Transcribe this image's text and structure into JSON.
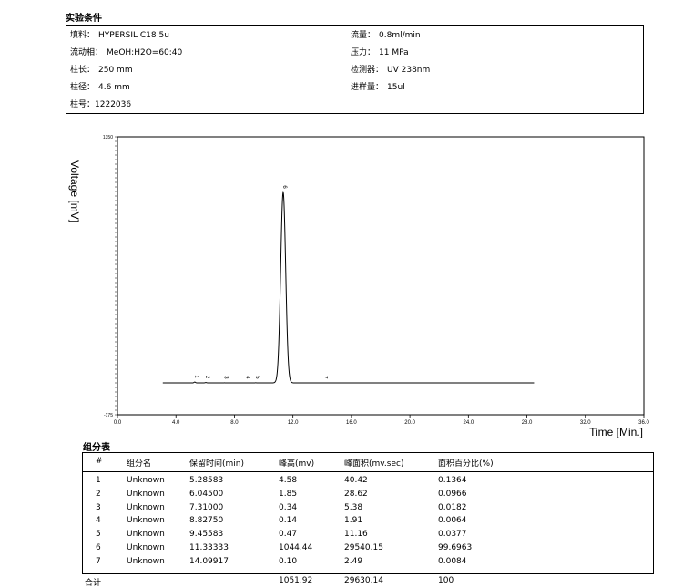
{
  "conditions": {
    "title": "实验条件",
    "left": [
      {
        "label": "填料：",
        "value": "HYPERSIL C18 5u"
      },
      {
        "label": "流动相：",
        "value": "MeOH:H2O=60:40"
      },
      {
        "label": "柱长：",
        "value": "250 mm"
      },
      {
        "label": "柱径：",
        "value": "4.6 mm"
      },
      {
        "label": "柱号：",
        "value": "1222036"
      }
    ],
    "right": [
      {
        "label": "流量：",
        "value": "0.8ml/min"
      },
      {
        "label": "压力：",
        "value": "11 MPa"
      },
      {
        "label": "检测器：",
        "value": "UV 238nm"
      },
      {
        "label": "进样量：",
        "value": "15ul"
      }
    ]
  },
  "chart_data": {
    "type": "line",
    "xlabel": "Time [Min.]",
    "ylabel": "Voltage [mV]",
    "xlim": [
      0,
      36
    ],
    "ylim": [
      -175,
      1350
    ],
    "x_ticks": [
      0.0,
      4.0,
      8.0,
      12.0,
      16.0,
      20.0,
      24.0,
      28.0,
      32.0,
      36.0
    ],
    "x_tick_labels": [
      "0.0",
      "4.0",
      "8.0",
      "12.0",
      "16.0",
      "20.0",
      "24.0",
      "28.0",
      "32.0",
      "36.0"
    ],
    "y_tick_labels_shown": [
      "1350",
      "-175"
    ],
    "trace_end": 28.5,
    "peaks": [
      {
        "label": "1",
        "x": 5.28583,
        "height": 4.58
      },
      {
        "label": "2",
        "x": 6.045,
        "height": 1.85
      },
      {
        "label": "3",
        "x": 7.31,
        "height": 0.34
      },
      {
        "label": "4",
        "x": 8.8275,
        "height": 0.14
      },
      {
        "label": "5",
        "x": 9.45583,
        "height": 0.47
      },
      {
        "label": "6",
        "x": 11.33333,
        "height": 1044.44
      },
      {
        "label": "7",
        "x": 14.09917,
        "height": 0.1
      }
    ]
  },
  "table": {
    "title": "组分表",
    "headers": [
      "#",
      "组分名",
      "保留时间(min)",
      "峰高(mv)",
      "峰面积(mv.sec)",
      "面积百分比(%)"
    ],
    "rows": [
      [
        "1",
        "Unknown",
        "5.28583",
        "4.58",
        "40.42",
        "0.1364"
      ],
      [
        "2",
        "Unknown",
        "6.04500",
        "1.85",
        "28.62",
        "0.0966"
      ],
      [
        "3",
        "Unknown",
        "7.31000",
        "0.34",
        "5.38",
        "0.0182"
      ],
      [
        "4",
        "Unknown",
        "8.82750",
        "0.14",
        "1.91",
        "0.0064"
      ],
      [
        "5",
        "Unknown",
        "9.45583",
        "0.47",
        "11.16",
        "0.0377"
      ],
      [
        "6",
        "Unknown",
        "11.33333",
        "1044.44",
        "29540.15",
        "99.6963"
      ],
      [
        "7",
        "Unknown",
        "14.09917",
        "0.10",
        "2.49",
        "0.0084"
      ]
    ],
    "total": [
      "合计",
      "",
      "",
      "1051.92",
      "29630.14",
      "100"
    ]
  }
}
